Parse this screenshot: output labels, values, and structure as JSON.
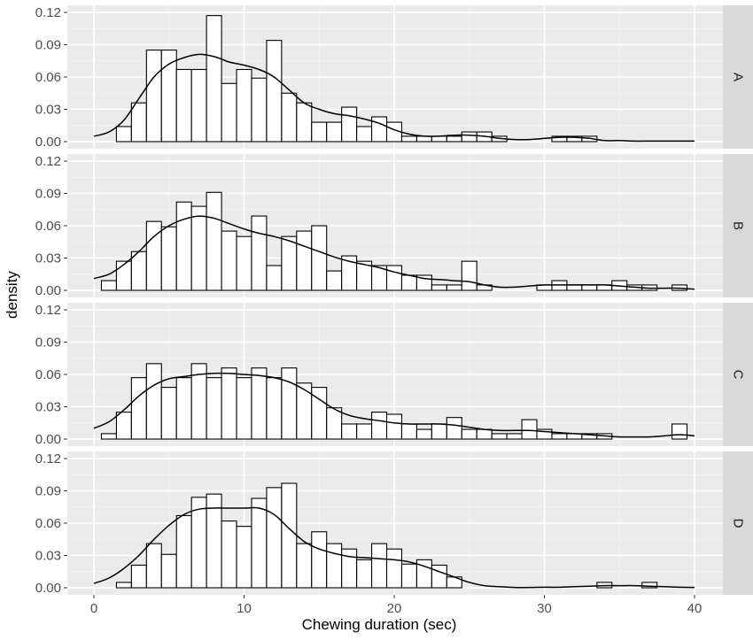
{
  "chart_data": {
    "type": "histogram",
    "xlabel": "Chewing duration (sec)",
    "ylabel": "density",
    "xlim": [
      0,
      40
    ],
    "ylim": [
      0,
      0.12
    ],
    "x_ticks": [
      0,
      10,
      20,
      30,
      40
    ],
    "y_ticks": [
      0,
      0.03,
      0.06,
      0.09,
      0.12
    ],
    "y_tick_labels": [
      "0.00",
      "0.03",
      "0.06",
      "0.09",
      "0.12"
    ],
    "bin_width": 1,
    "bin_starts": [
      0.5,
      1.5,
      2.5,
      3.5,
      4.5,
      5.5,
      6.5,
      7.5,
      8.5,
      9.5,
      10.5,
      11.5,
      12.5,
      13.5,
      14.5,
      15.5,
      16.5,
      17.5,
      18.5,
      19.5,
      20.5,
      21.5,
      22.5,
      23.5,
      24.5,
      25.5,
      26.5,
      27.5,
      28.5,
      29.5,
      30.5,
      31.5,
      32.5,
      33.5,
      34.5,
      35.5,
      36.5,
      37.5,
      38.5
    ],
    "grid": true,
    "panels": [
      {
        "label": "A",
        "densities": [
          0,
          0.014,
          0.036,
          0.085,
          0.085,
          0.067,
          0.067,
          0.117,
          0.054,
          0.067,
          0.059,
          0.094,
          0.045,
          0.036,
          0.018,
          0.018,
          0.032,
          0.014,
          0.023,
          0.018,
          0.005,
          0.005,
          0.005,
          0.005,
          0.009,
          0.009,
          0.005,
          0,
          0,
          0,
          0.005,
          0.005,
          0.005,
          0,
          0,
          0,
          0,
          0,
          0
        ],
        "kde": [
          [
            0,
            0.005
          ],
          [
            1,
            0.009
          ],
          [
            2,
            0.02
          ],
          [
            3,
            0.04
          ],
          [
            4,
            0.06
          ],
          [
            5,
            0.072
          ],
          [
            6,
            0.078
          ],
          [
            7,
            0.081
          ],
          [
            8,
            0.079
          ],
          [
            9,
            0.074
          ],
          [
            10,
            0.071
          ],
          [
            11,
            0.067
          ],
          [
            12,
            0.06
          ],
          [
            13,
            0.048
          ],
          [
            14,
            0.036
          ],
          [
            15,
            0.03
          ],
          [
            16,
            0.026
          ],
          [
            17,
            0.024
          ],
          [
            18,
            0.021
          ],
          [
            19,
            0.017
          ],
          [
            20,
            0.011
          ],
          [
            21,
            0.007
          ],
          [
            22,
            0.005
          ],
          [
            23,
            0.005
          ],
          [
            24,
            0.006
          ],
          [
            25,
            0.006
          ],
          [
            26,
            0.005
          ],
          [
            27,
            0.003
          ],
          [
            28,
            0.002
          ],
          [
            29,
            0.002
          ],
          [
            30,
            0.003
          ],
          [
            31,
            0.004
          ],
          [
            32,
            0.004
          ],
          [
            33,
            0.003
          ],
          [
            34,
            0.001
          ],
          [
            35,
            0.001
          ],
          [
            36,
            0.0005
          ],
          [
            37,
            0.0005
          ],
          [
            38,
            0.0005
          ],
          [
            39,
            0.0005
          ],
          [
            40,
            0.0005
          ]
        ]
      },
      {
        "label": "B",
        "densities": [
          0.009,
          0.027,
          0.036,
          0.064,
          0.059,
          0.082,
          0.078,
          0.091,
          0.055,
          0.05,
          0.069,
          0.023,
          0.05,
          0.055,
          0.06,
          0.018,
          0.032,
          0.027,
          0.023,
          0.023,
          0.014,
          0.014,
          0.005,
          0.005,
          0.027,
          0.005,
          0,
          0,
          0,
          0.005,
          0.009,
          0.005,
          0.005,
          0.005,
          0.009,
          0.005,
          0.005,
          0,
          0.005
        ],
        "kde": [
          [
            0,
            0.011
          ],
          [
            1,
            0.015
          ],
          [
            2,
            0.024
          ],
          [
            3,
            0.036
          ],
          [
            4,
            0.05
          ],
          [
            5,
            0.06
          ],
          [
            6,
            0.066
          ],
          [
            7,
            0.069
          ],
          [
            8,
            0.067
          ],
          [
            9,
            0.062
          ],
          [
            10,
            0.057
          ],
          [
            11,
            0.053
          ],
          [
            12,
            0.05
          ],
          [
            13,
            0.046
          ],
          [
            14,
            0.041
          ],
          [
            15,
            0.036
          ],
          [
            16,
            0.031
          ],
          [
            17,
            0.027
          ],
          [
            18,
            0.024
          ],
          [
            19,
            0.021
          ],
          [
            20,
            0.017
          ],
          [
            21,
            0.014
          ],
          [
            22,
            0.011
          ],
          [
            23,
            0.01
          ],
          [
            24,
            0.009
          ],
          [
            25,
            0.008
          ],
          [
            26,
            0.005
          ],
          [
            27,
            0.003
          ],
          [
            28,
            0.003
          ],
          [
            29,
            0.004
          ],
          [
            30,
            0.005
          ],
          [
            31,
            0.005
          ],
          [
            32,
            0.005
          ],
          [
            33,
            0.005
          ],
          [
            34,
            0.005
          ],
          [
            35,
            0.004
          ],
          [
            36,
            0.003
          ],
          [
            37,
            0.002
          ],
          [
            38,
            0.002
          ],
          [
            39,
            0.002
          ],
          [
            40,
            0.001
          ]
        ]
      },
      {
        "label": "C",
        "densities": [
          0.005,
          0.025,
          0.057,
          0.07,
          0.048,
          0.057,
          0.07,
          0.057,
          0.066,
          0.057,
          0.066,
          0.057,
          0.066,
          0.052,
          0.048,
          0.029,
          0.014,
          0.014,
          0.025,
          0.023,
          0.014,
          0.009,
          0.014,
          0.02,
          0.009,
          0.009,
          0.005,
          0.005,
          0.018,
          0.009,
          0.005,
          0.005,
          0.005,
          0.005,
          0,
          0,
          0,
          0,
          0.014
        ],
        "kde": [
          [
            0,
            0.01
          ],
          [
            1,
            0.016
          ],
          [
            2,
            0.027
          ],
          [
            3,
            0.04
          ],
          [
            4,
            0.05
          ],
          [
            5,
            0.056
          ],
          [
            6,
            0.058
          ],
          [
            7,
            0.06
          ],
          [
            8,
            0.061
          ],
          [
            9,
            0.061
          ],
          [
            10,
            0.06
          ],
          [
            11,
            0.059
          ],
          [
            12,
            0.057
          ],
          [
            13,
            0.053
          ],
          [
            14,
            0.046
          ],
          [
            15,
            0.037
          ],
          [
            16,
            0.028
          ],
          [
            17,
            0.022
          ],
          [
            18,
            0.019
          ],
          [
            19,
            0.017
          ],
          [
            20,
            0.015
          ],
          [
            21,
            0.014
          ],
          [
            22,
            0.014
          ],
          [
            23,
            0.014
          ],
          [
            24,
            0.013
          ],
          [
            25,
            0.011
          ],
          [
            26,
            0.009
          ],
          [
            27,
            0.008
          ],
          [
            28,
            0.008
          ],
          [
            29,
            0.008
          ],
          [
            30,
            0.007
          ],
          [
            31,
            0.006
          ],
          [
            32,
            0.005
          ],
          [
            33,
            0.004
          ],
          [
            34,
            0.003
          ],
          [
            35,
            0.002
          ],
          [
            36,
            0.002
          ],
          [
            37,
            0.002
          ],
          [
            38,
            0.003
          ],
          [
            39,
            0.004
          ],
          [
            40,
            0.003
          ]
        ]
      },
      {
        "label": "D",
        "densities": [
          0,
          0.005,
          0.021,
          0.041,
          0.031,
          0.067,
          0.084,
          0.087,
          0.062,
          0.057,
          0.083,
          0.093,
          0.097,
          0.041,
          0.052,
          0.041,
          0.036,
          0.026,
          0.041,
          0.036,
          0.022,
          0.026,
          0.021,
          0.01,
          0,
          0,
          0,
          0,
          0,
          0,
          0,
          0,
          0,
          0.005,
          0,
          0,
          0.005,
          0,
          0
        ],
        "kde": [
          [
            0,
            0.004
          ],
          [
            1,
            0.009
          ],
          [
            2,
            0.018
          ],
          [
            3,
            0.03
          ],
          [
            4,
            0.045
          ],
          [
            5,
            0.058
          ],
          [
            6,
            0.068
          ],
          [
            7,
            0.073
          ],
          [
            8,
            0.074
          ],
          [
            9,
            0.074
          ],
          [
            10,
            0.074
          ],
          [
            11,
            0.074
          ],
          [
            12,
            0.068
          ],
          [
            13,
            0.055
          ],
          [
            14,
            0.043
          ],
          [
            15,
            0.036
          ],
          [
            16,
            0.032
          ],
          [
            17,
            0.029
          ],
          [
            18,
            0.028
          ],
          [
            19,
            0.027
          ],
          [
            20,
            0.026
          ],
          [
            21,
            0.024
          ],
          [
            22,
            0.02
          ],
          [
            23,
            0.015
          ],
          [
            24,
            0.01
          ],
          [
            25,
            0.005
          ],
          [
            26,
            0.002
          ],
          [
            27,
            0.001
          ],
          [
            28,
            0.0003
          ],
          [
            29,
            0.0003
          ],
          [
            30,
            0.0005
          ],
          [
            31,
            0.0005
          ],
          [
            32,
            0.001
          ],
          [
            33,
            0.0015
          ],
          [
            34,
            0.002
          ],
          [
            35,
            0.002
          ],
          [
            36,
            0.002
          ],
          [
            37,
            0.0015
          ],
          [
            38,
            0.001
          ],
          [
            39,
            0.0005
          ],
          [
            40,
            0.0003
          ]
        ]
      }
    ]
  }
}
